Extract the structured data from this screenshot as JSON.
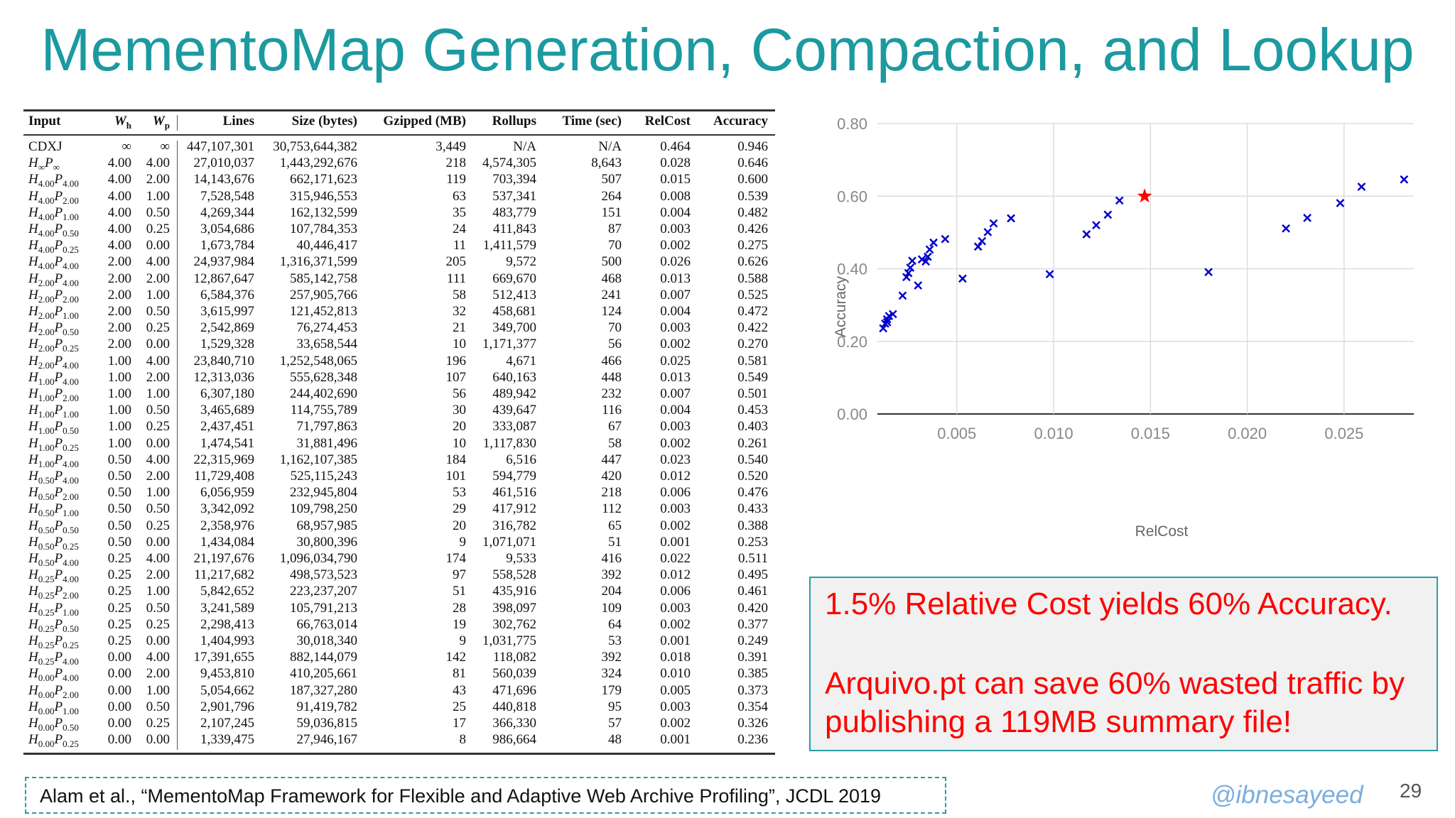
{
  "title": "MementoMap Generation, Compaction, and Lookup",
  "table": {
    "headers": [
      "Input",
      "W",
      "W",
      "Lines",
      "Size (bytes)",
      "Gzipped (MB)",
      "Rollups",
      "Time (sec)",
      "RelCost",
      "Accuracy"
    ],
    "header_subs": [
      "",
      "h",
      "p"
    ],
    "rows": [
      {
        "input": "CDXJ",
        "h": "",
        "p": "",
        "wh": "∞",
        "wp": "∞",
        "lines": "447,107,301",
        "size": "30,753,644,382",
        "gz": "3,449",
        "rollups": "N/A",
        "time": "N/A",
        "relcost": "0.464",
        "acc": "0.946"
      },
      {
        "input": "",
        "h": "∞",
        "p": "∞",
        "wh": "4.00",
        "wp": "4.00",
        "lines": "27,010,037",
        "size": "1,443,292,676",
        "gz": "218",
        "rollups": "4,574,305",
        "time": "8,643",
        "relcost": "0.028",
        "acc": "0.646"
      },
      {
        "input": "",
        "h": "4.00",
        "p": "4.00",
        "wh": "4.00",
        "wp": "2.00",
        "lines": "14,143,676",
        "size": "662,171,623",
        "gz": "119",
        "rollups": "703,394",
        "time": "507",
        "relcost": "0.015",
        "acc": "0.600"
      },
      {
        "input": "",
        "h": "4.00",
        "p": "2.00",
        "wh": "4.00",
        "wp": "1.00",
        "lines": "7,528,548",
        "size": "315,946,553",
        "gz": "63",
        "rollups": "537,341",
        "time": "264",
        "relcost": "0.008",
        "acc": "0.539"
      },
      {
        "input": "",
        "h": "4.00",
        "p": "1.00",
        "wh": "4.00",
        "wp": "0.50",
        "lines": "4,269,344",
        "size": "162,132,599",
        "gz": "35",
        "rollups": "483,779",
        "time": "151",
        "relcost": "0.004",
        "acc": "0.482"
      },
      {
        "input": "",
        "h": "4.00",
        "p": "0.50",
        "wh": "4.00",
        "wp": "0.25",
        "lines": "3,054,686",
        "size": "107,784,353",
        "gz": "24",
        "rollups": "411,843",
        "time": "87",
        "relcost": "0.003",
        "acc": "0.426"
      },
      {
        "input": "",
        "h": "4.00",
        "p": "0.25",
        "wh": "4.00",
        "wp": "0.00",
        "lines": "1,673,784",
        "size": "40,446,417",
        "gz": "11",
        "rollups": "1,411,579",
        "time": "70",
        "relcost": "0.002",
        "acc": "0.275"
      },
      {
        "input": "",
        "h": "4.00",
        "p": "4.00",
        "wh": "2.00",
        "wp": "4.00",
        "lines": "24,937,984",
        "size": "1,316,371,599",
        "gz": "205",
        "rollups": "9,572",
        "time": "500",
        "relcost": "0.026",
        "acc": "0.626"
      },
      {
        "input": "",
        "h": "2.00",
        "p": "4.00",
        "wh": "2.00",
        "wp": "2.00",
        "lines": "12,867,647",
        "size": "585,142,758",
        "gz": "111",
        "rollups": "669,670",
        "time": "468",
        "relcost": "0.013",
        "acc": "0.588"
      },
      {
        "input": "",
        "h": "2.00",
        "p": "2.00",
        "wh": "2.00",
        "wp": "1.00",
        "lines": "6,584,376",
        "size": "257,905,766",
        "gz": "58",
        "rollups": "512,413",
        "time": "241",
        "relcost": "0.007",
        "acc": "0.525"
      },
      {
        "input": "",
        "h": "2.00",
        "p": "1.00",
        "wh": "2.00",
        "wp": "0.50",
        "lines": "3,615,997",
        "size": "121,452,813",
        "gz": "32",
        "rollups": "458,681",
        "time": "124",
        "relcost": "0.004",
        "acc": "0.472"
      },
      {
        "input": "",
        "h": "2.00",
        "p": "0.50",
        "wh": "2.00",
        "wp": "0.25",
        "lines": "2,542,869",
        "size": "76,274,453",
        "gz": "21",
        "rollups": "349,700",
        "time": "70",
        "relcost": "0.003",
        "acc": "0.422"
      },
      {
        "input": "",
        "h": "2.00",
        "p": "0.25",
        "wh": "2.00",
        "wp": "0.00",
        "lines": "1,529,328",
        "size": "33,658,544",
        "gz": "10",
        "rollups": "1,171,377",
        "time": "56",
        "relcost": "0.002",
        "acc": "0.270"
      },
      {
        "input": "",
        "h": "2.00",
        "p": "4.00",
        "wh": "1.00",
        "wp": "4.00",
        "lines": "23,840,710",
        "size": "1,252,548,065",
        "gz": "196",
        "rollups": "4,671",
        "time": "466",
        "relcost": "0.025",
        "acc": "0.581"
      },
      {
        "input": "",
        "h": "1.00",
        "p": "4.00",
        "wh": "1.00",
        "wp": "2.00",
        "lines": "12,313,036",
        "size": "555,628,348",
        "gz": "107",
        "rollups": "640,163",
        "time": "448",
        "relcost": "0.013",
        "acc": "0.549"
      },
      {
        "input": "",
        "h": "1.00",
        "p": "2.00",
        "wh": "1.00",
        "wp": "1.00",
        "lines": "6,307,180",
        "size": "244,402,690",
        "gz": "56",
        "rollups": "489,942",
        "time": "232",
        "relcost": "0.007",
        "acc": "0.501"
      },
      {
        "input": "",
        "h": "1.00",
        "p": "1.00",
        "wh": "1.00",
        "wp": "0.50",
        "lines": "3,465,689",
        "size": "114,755,789",
        "gz": "30",
        "rollups": "439,647",
        "time": "116",
        "relcost": "0.004",
        "acc": "0.453"
      },
      {
        "input": "",
        "h": "1.00",
        "p": "0.50",
        "wh": "1.00",
        "wp": "0.25",
        "lines": "2,437,451",
        "size": "71,797,863",
        "gz": "20",
        "rollups": "333,087",
        "time": "67",
        "relcost": "0.003",
        "acc": "0.403"
      },
      {
        "input": "",
        "h": "1.00",
        "p": "0.25",
        "wh": "1.00",
        "wp": "0.00",
        "lines": "1,474,541",
        "size": "31,881,496",
        "gz": "10",
        "rollups": "1,117,830",
        "time": "58",
        "relcost": "0.002",
        "acc": "0.261"
      },
      {
        "input": "",
        "h": "1.00",
        "p": "4.00",
        "wh": "0.50",
        "wp": "4.00",
        "lines": "22,315,969",
        "size": "1,162,107,385",
        "gz": "184",
        "rollups": "6,516",
        "time": "447",
        "relcost": "0.023",
        "acc": "0.540"
      },
      {
        "input": "",
        "h": "0.50",
        "p": "4.00",
        "wh": "0.50",
        "wp": "2.00",
        "lines": "11,729,408",
        "size": "525,115,243",
        "gz": "101",
        "rollups": "594,779",
        "time": "420",
        "relcost": "0.012",
        "acc": "0.520"
      },
      {
        "input": "",
        "h": "0.50",
        "p": "2.00",
        "wh": "0.50",
        "wp": "1.00",
        "lines": "6,056,959",
        "size": "232,945,804",
        "gz": "53",
        "rollups": "461,516",
        "time": "218",
        "relcost": "0.006",
        "acc": "0.476"
      },
      {
        "input": "",
        "h": "0.50",
        "p": "1.00",
        "wh": "0.50",
        "wp": "0.50",
        "lines": "3,342,092",
        "size": "109,798,250",
        "gz": "29",
        "rollups": "417,912",
        "time": "112",
        "relcost": "0.003",
        "acc": "0.433"
      },
      {
        "input": "",
        "h": "0.50",
        "p": "0.50",
        "wh": "0.50",
        "wp": "0.25",
        "lines": "2,358,976",
        "size": "68,957,985",
        "gz": "20",
        "rollups": "316,782",
        "time": "65",
        "relcost": "0.002",
        "acc": "0.388"
      },
      {
        "input": "",
        "h": "0.50",
        "p": "0.25",
        "wh": "0.50",
        "wp": "0.00",
        "lines": "1,434,084",
        "size": "30,800,396",
        "gz": "9",
        "rollups": "1,071,071",
        "time": "51",
        "relcost": "0.001",
        "acc": "0.253"
      },
      {
        "input": "",
        "h": "0.50",
        "p": "4.00",
        "wh": "0.25",
        "wp": "4.00",
        "lines": "21,197,676",
        "size": "1,096,034,790",
        "gz": "174",
        "rollups": "9,533",
        "time": "416",
        "relcost": "0.022",
        "acc": "0.511"
      },
      {
        "input": "",
        "h": "0.25",
        "p": "4.00",
        "wh": "0.25",
        "wp": "2.00",
        "lines": "11,217,682",
        "size": "498,573,523",
        "gz": "97",
        "rollups": "558,528",
        "time": "392",
        "relcost": "0.012",
        "acc": "0.495"
      },
      {
        "input": "",
        "h": "0.25",
        "p": "2.00",
        "wh": "0.25",
        "wp": "1.00",
        "lines": "5,842,652",
        "size": "223,237,207",
        "gz": "51",
        "rollups": "435,916",
        "time": "204",
        "relcost": "0.006",
        "acc": "0.461"
      },
      {
        "input": "",
        "h": "0.25",
        "p": "1.00",
        "wh": "0.25",
        "wp": "0.50",
        "lines": "3,241,589",
        "size": "105,791,213",
        "gz": "28",
        "rollups": "398,097",
        "time": "109",
        "relcost": "0.003",
        "acc": "0.420"
      },
      {
        "input": "",
        "h": "0.25",
        "p": "0.50",
        "wh": "0.25",
        "wp": "0.25",
        "lines": "2,298,413",
        "size": "66,763,014",
        "gz": "19",
        "rollups": "302,762",
        "time": "64",
        "relcost": "0.002",
        "acc": "0.377"
      },
      {
        "input": "",
        "h": "0.25",
        "p": "0.25",
        "wh": "0.25",
        "wp": "0.00",
        "lines": "1,404,993",
        "size": "30,018,340",
        "gz": "9",
        "rollups": "1,031,775",
        "time": "53",
        "relcost": "0.001",
        "acc": "0.249"
      },
      {
        "input": "",
        "h": "0.25",
        "p": "4.00",
        "wh": "0.00",
        "wp": "4.00",
        "lines": "17,391,655",
        "size": "882,144,079",
        "gz": "142",
        "rollups": "118,082",
        "time": "392",
        "relcost": "0.018",
        "acc": "0.391"
      },
      {
        "input": "",
        "h": "0.00",
        "p": "4.00",
        "wh": "0.00",
        "wp": "2.00",
        "lines": "9,453,810",
        "size": "410,205,661",
        "gz": "81",
        "rollups": "560,039",
        "time": "324",
        "relcost": "0.010",
        "acc": "0.385"
      },
      {
        "input": "",
        "h": "0.00",
        "p": "2.00",
        "wh": "0.00",
        "wp": "1.00",
        "lines": "5,054,662",
        "size": "187,327,280",
        "gz": "43",
        "rollups": "471,696",
        "time": "179",
        "relcost": "0.005",
        "acc": "0.373"
      },
      {
        "input": "",
        "h": "0.00",
        "p": "1.00",
        "wh": "0.00",
        "wp": "0.50",
        "lines": "2,901,796",
        "size": "91,419,782",
        "gz": "25",
        "rollups": "440,818",
        "time": "95",
        "relcost": "0.003",
        "acc": "0.354"
      },
      {
        "input": "",
        "h": "0.00",
        "p": "0.50",
        "wh": "0.00",
        "wp": "0.25",
        "lines": "2,107,245",
        "size": "59,036,815",
        "gz": "17",
        "rollups": "366,330",
        "time": "57",
        "relcost": "0.002",
        "acc": "0.326"
      },
      {
        "input": "",
        "h": "0.00",
        "p": "0.25",
        "wh": "0.00",
        "wp": "0.00",
        "lines": "1,339,475",
        "size": "27,946,167",
        "gz": "8",
        "rollups": "986,664",
        "time": "48",
        "relcost": "0.001",
        "acc": "0.236"
      }
    ]
  },
  "chart_data": {
    "type": "scatter",
    "title": "",
    "xlabel": "RelCost",
    "ylabel": "Accuracy",
    "xlim": [
      0.0009,
      0.0286
    ],
    "ylim": [
      0,
      0.8
    ],
    "xticks": [
      "0.005",
      "0.010",
      "0.015",
      "0.020",
      "0.025"
    ],
    "xtick_values": [
      0.005,
      0.01,
      0.015,
      0.02,
      0.025
    ],
    "yticks": [
      "0.00",
      "0.20",
      "0.40",
      "0.60",
      "0.80"
    ],
    "ytick_values": [
      0,
      0.2,
      0.4,
      0.6,
      0.8
    ],
    "grid": true,
    "marker": "x",
    "marker_color": "#0000cc",
    "highlight": {
      "x": 0.0147,
      "y": 0.6,
      "marker": "star",
      "color": "#ff0000"
    },
    "points": [
      [
        0.0281,
        0.646
      ],
      [
        0.0259,
        0.626
      ],
      [
        0.0248,
        0.581
      ],
      [
        0.0231,
        0.54
      ],
      [
        0.022,
        0.511
      ],
      [
        0.018,
        0.391
      ],
      [
        0.0134,
        0.588
      ],
      [
        0.0128,
        0.549
      ],
      [
        0.0122,
        0.52
      ],
      [
        0.0117,
        0.495
      ],
      [
        0.0098,
        0.385
      ],
      [
        0.0078,
        0.539
      ],
      [
        0.0069,
        0.525
      ],
      [
        0.0066,
        0.501
      ],
      [
        0.0063,
        0.476
      ],
      [
        0.0061,
        0.461
      ],
      [
        0.0053,
        0.373
      ],
      [
        0.0044,
        0.482
      ],
      [
        0.0038,
        0.472
      ],
      [
        0.0036,
        0.453
      ],
      [
        0.0035,
        0.433
      ],
      [
        0.0034,
        0.42
      ],
      [
        0.0032,
        0.426
      ],
      [
        0.003,
        0.354
      ],
      [
        0.0027,
        0.422
      ],
      [
        0.0026,
        0.403
      ],
      [
        0.0025,
        0.388
      ],
      [
        0.0024,
        0.377
      ],
      [
        0.0022,
        0.326
      ],
      [
        0.0017,
        0.275
      ],
      [
        0.0015,
        0.27
      ],
      [
        0.0014,
        0.261
      ],
      [
        0.0014,
        0.253
      ],
      [
        0.0013,
        0.249
      ],
      [
        0.0012,
        0.236
      ]
    ]
  },
  "callout": {
    "line1": "1.5% Relative Cost yields 60% Accuracy.",
    "line2": "Arquivo.pt can save 60% wasted traffic by",
    "line3": "publishing a 119MB summary file!"
  },
  "citation": "Alam et al., “MementoMap Framework for Flexible and Adaptive Web Archive Profiling”, JCDL 2019",
  "handle": "@ibnesayeed",
  "page_number": "29"
}
